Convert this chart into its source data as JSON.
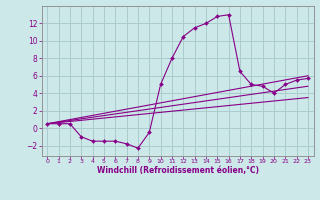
{
  "background_color": "#cce8e8",
  "grid_color": "#aacccc",
  "line_color": "#880088",
  "xlim": [
    -0.5,
    23.5
  ],
  "ylim": [
    -3.2,
    14.0
  ],
  "xlabel": "Windchill (Refroidissement éolien,°C)",
  "xticks": [
    0,
    1,
    2,
    3,
    4,
    5,
    6,
    7,
    8,
    9,
    10,
    11,
    12,
    13,
    14,
    15,
    16,
    17,
    18,
    19,
    20,
    21,
    22,
    23
  ],
  "yticks": [
    -2,
    0,
    2,
    4,
    6,
    8,
    10,
    12
  ],
  "series1_x": [
    0,
    1,
    2,
    3,
    4,
    5,
    6,
    7,
    8,
    9,
    10,
    11,
    12,
    13,
    14,
    15,
    16,
    17,
    18,
    19,
    20,
    21,
    22,
    23
  ],
  "series1_y": [
    0.5,
    0.5,
    0.5,
    -1.0,
    -1.5,
    -1.5,
    -1.5,
    -1.8,
    -2.3,
    -0.5,
    5.0,
    8.0,
    10.5,
    11.5,
    12.0,
    12.8,
    13.0,
    6.5,
    5.0,
    4.8,
    4.0,
    5.0,
    5.5,
    5.7
  ],
  "line2_x": [
    0,
    23
  ],
  "line2_y": [
    0.5,
    6.0
  ],
  "line3_x": [
    0,
    23
  ],
  "line3_y": [
    0.5,
    4.8
  ],
  "line4_x": [
    0,
    23
  ],
  "line4_y": [
    0.5,
    3.5
  ]
}
